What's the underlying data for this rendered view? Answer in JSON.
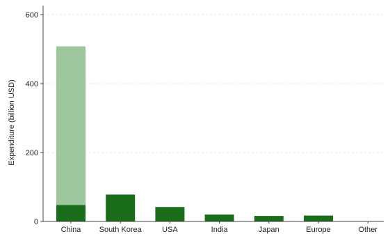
{
  "chart_data": {
    "type": "bar",
    "categories": [
      "China",
      "South Korea",
      "USA",
      "India",
      "Japan",
      "Europe",
      "Other"
    ],
    "series": [
      {
        "values": [
          48,
          78,
          42,
          20,
          16,
          17,
          1
        ]
      },
      {
        "values": [
          460,
          0,
          0,
          0,
          0,
          0,
          0
        ]
      }
    ],
    "stacked": true,
    "ylabel": "Expenditure (billion USD)",
    "xlabel": "",
    "ylim": [
      0,
      600
    ],
    "yticks": [
      0,
      200,
      400,
      600
    ],
    "grid": "horizontal-dashed",
    "colors": {
      "base": "#1a6e1a",
      "upper": "#9dc69d",
      "axis": "#444444",
      "grid": "#e6e6e6"
    }
  }
}
